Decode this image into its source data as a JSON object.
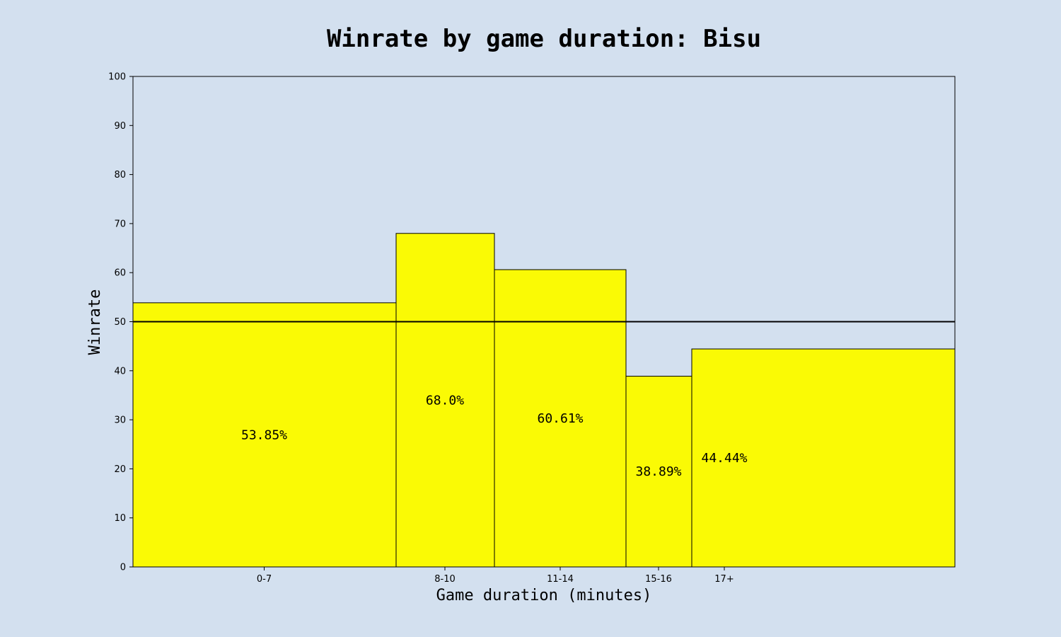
{
  "chart_data": {
    "type": "bar",
    "title": "Winrate by game duration: Bisu",
    "xlabel": "Game duration (minutes)",
    "ylabel": "Winrate",
    "ylim": [
      0,
      100
    ],
    "yticks": [
      "0",
      "10",
      "20",
      "30",
      "40",
      "50",
      "60",
      "70",
      "80",
      "90",
      "100"
    ],
    "categories": [
      "0-7",
      "8-10",
      "11-14",
      "15-16",
      "17+"
    ],
    "values": [
      53.85,
      68.0,
      60.61,
      38.89,
      44.44
    ],
    "value_labels": [
      "53.85%",
      "68.0%",
      "60.61%",
      "38.89%",
      "44.44%"
    ],
    "reference_line": 50,
    "grid": false,
    "legend": "none",
    "colors": {
      "background": "#d3e0ef",
      "bar_fill": "#fafa05",
      "bar_edge": "#000000",
      "reference_line": "#000000"
    }
  }
}
